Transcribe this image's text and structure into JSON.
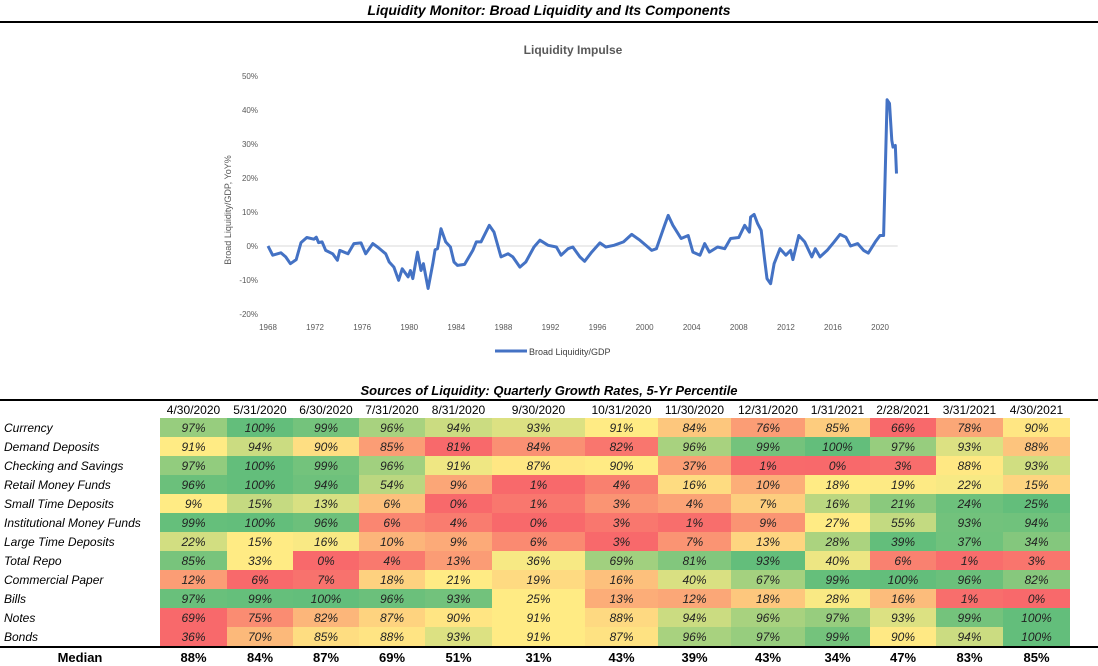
{
  "title": "Liquidity Monitor: Broad Liquidity and Its Components",
  "chart_data": {
    "type": "line",
    "title": "Liquidity Impulse",
    "xlabel": "",
    "ylabel": "Broad Liquidity/GDP, YoY%",
    "xlim": [
      1968,
      2022
    ],
    "ylim": [
      -20,
      50
    ],
    "x_ticks": [
      "1968",
      "1972",
      "1976",
      "1980",
      "1984",
      "1988",
      "1992",
      "1996",
      "2000",
      "2004",
      "2008",
      "2012",
      "2016",
      "2020"
    ],
    "y_ticks": [
      "50%",
      "40%",
      "30%",
      "20%",
      "10%",
      "0%",
      "-10%",
      "-20%"
    ],
    "grid": false,
    "legend": "bottom",
    "series": [
      {
        "name": "Broad Liquidity/GDP",
        "color": "#4472C4",
        "points": [
          [
            1968.0,
            0
          ],
          [
            1968.4,
            -2.7
          ],
          [
            1969.1,
            -2
          ],
          [
            1969.5,
            -3.2
          ],
          [
            1969.9,
            -5.2
          ],
          [
            1970.4,
            -4
          ],
          [
            1970.8,
            1
          ],
          [
            1971.3,
            2.5
          ],
          [
            1971.9,
            2
          ],
          [
            1972.1,
            2.6
          ],
          [
            1972.3,
            1
          ],
          [
            1972.6,
            1.2
          ],
          [
            1972.9,
            -1.3
          ],
          [
            1973.5,
            -2.3
          ],
          [
            1973.9,
            -4.2
          ],
          [
            1974.1,
            -1.3
          ],
          [
            1974.8,
            -2.3
          ],
          [
            1975.3,
            0.7
          ],
          [
            1975.9,
            0.9
          ],
          [
            1976.3,
            -2.3
          ],
          [
            1976.9,
            0.7
          ],
          [
            1977.3,
            -0.3
          ],
          [
            1978.0,
            -2.3
          ],
          [
            1978.3,
            -4.7
          ],
          [
            1978.7,
            -6.2
          ],
          [
            1979.1,
            -10.1
          ],
          [
            1979.4,
            -6.7
          ],
          [
            1979.9,
            -9.1
          ],
          [
            1980.1,
            -7.2
          ],
          [
            1980.3,
            -9.6
          ],
          [
            1980.7,
            -1.8
          ],
          [
            1981.0,
            -7.2
          ],
          [
            1981.2,
            -5.2
          ],
          [
            1981.6,
            -12.5
          ],
          [
            1982.0,
            -5.2
          ],
          [
            1982.2,
            -1.1
          ],
          [
            1982.4,
            -0.8
          ],
          [
            1982.7,
            5.1
          ],
          [
            1983.1,
            1.2
          ],
          [
            1983.5,
            -0.3
          ],
          [
            1983.8,
            -4.7
          ],
          [
            1984.1,
            -5.7
          ],
          [
            1984.7,
            -5.4
          ],
          [
            1985.4,
            -1.3
          ],
          [
            1985.7,
            1.2
          ],
          [
            1986.1,
            1.2
          ],
          [
            1986.8,
            6.1
          ],
          [
            1987.2,
            4.1
          ],
          [
            1987.8,
            -3.2
          ],
          [
            1988.4,
            -2.3
          ],
          [
            1988.8,
            -3.2
          ],
          [
            1989.4,
            -6.2
          ],
          [
            1989.9,
            -4.7
          ],
          [
            1990.6,
            -0.3
          ],
          [
            1991.1,
            1.7
          ],
          [
            1991.8,
            0.2
          ],
          [
            1992.5,
            -0.3
          ],
          [
            1992.9,
            -2.7
          ],
          [
            1993.5,
            -0.8
          ],
          [
            1993.9,
            -0.3
          ],
          [
            1994.5,
            -3.2
          ],
          [
            1994.9,
            -4.5
          ],
          [
            1995.5,
            -1.8
          ],
          [
            1996.2,
            0.9
          ],
          [
            1996.7,
            -0.3
          ],
          [
            1997.4,
            0.2
          ],
          [
            1998.2,
            1.2
          ],
          [
            1998.9,
            3.4
          ],
          [
            1999.6,
            1.7
          ],
          [
            2000.1,
            0.2
          ],
          [
            2000.6,
            -1.3
          ],
          [
            2001.0,
            -0.8
          ],
          [
            2001.7,
            6.1
          ],
          [
            2002.0,
            9
          ],
          [
            2002.4,
            6.1
          ],
          [
            2003.1,
            2.2
          ],
          [
            2003.7,
            3.1
          ],
          [
            2004.1,
            -1.8
          ],
          [
            2004.7,
            -2.7
          ],
          [
            2005.1,
            0.7
          ],
          [
            2005.5,
            -1.8
          ],
          [
            2006.2,
            -0.3
          ],
          [
            2006.8,
            -0.8
          ],
          [
            2007.3,
            2.2
          ],
          [
            2008.0,
            2.5
          ],
          [
            2008.5,
            6.1
          ],
          [
            2008.9,
            4.1
          ],
          [
            2009.0,
            8.5
          ],
          [
            2009.3,
            9.3
          ],
          [
            2009.6,
            6.6
          ],
          [
            2009.9,
            4.6
          ],
          [
            2010.2,
            -4.2
          ],
          [
            2010.4,
            -9.6
          ],
          [
            2010.7,
            -11.1
          ],
          [
            2011.0,
            -5.2
          ],
          [
            2011.5,
            -0.8
          ],
          [
            2012.0,
            -2.7
          ],
          [
            2012.4,
            -1.3
          ],
          [
            2012.6,
            -4
          ],
          [
            2013.1,
            3.1
          ],
          [
            2013.6,
            1.2
          ],
          [
            2014.2,
            -3.2
          ],
          [
            2014.5,
            -0.8
          ],
          [
            2014.9,
            -3.2
          ],
          [
            2015.5,
            -1.3
          ],
          [
            2016.1,
            1.2
          ],
          [
            2016.6,
            3.4
          ],
          [
            2017.1,
            2.6
          ],
          [
            2017.5,
            0
          ],
          [
            2018.1,
            0.7
          ],
          [
            2018.6,
            -1.3
          ],
          [
            2019.0,
            -2.1
          ],
          [
            2019.6,
            1.2
          ],
          [
            2020.0,
            3.1
          ],
          [
            2020.3,
            3.1
          ],
          [
            2020.6,
            43
          ],
          [
            2020.8,
            41.9
          ],
          [
            2021.0,
            31.1
          ],
          [
            2021.1,
            29.1
          ],
          [
            2021.3,
            29.6
          ],
          [
            2021.4,
            21.3
          ]
        ]
      }
    ]
  },
  "table": {
    "title": "Sources of Liquidity: Quarterly Growth Rates, 5-Yr Percentile",
    "columns": [
      "4/30/2020",
      "5/31/2020",
      "6/30/2020",
      "7/31/2020",
      "8/31/2020",
      "9/30/2020",
      "10/31/2020",
      "11/30/2020",
      "12/31/2020",
      "1/31/2021",
      "2/28/2021",
      "3/31/2021",
      "4/30/2021"
    ],
    "scale_colors": {
      "low": "#F8696B",
      "mid": "#FFEB84",
      "high": "#63BE7B"
    },
    "rows": [
      {
        "label": "Currency",
        "values": [
          "97%",
          "100%",
          "99%",
          "96%",
          "94%",
          "93%",
          "91%",
          "84%",
          "76%",
          "85%",
          "66%",
          "78%",
          "90%"
        ]
      },
      {
        "label": "Demand Deposits",
        "values": [
          "91%",
          "94%",
          "90%",
          "85%",
          "81%",
          "84%",
          "82%",
          "96%",
          "99%",
          "100%",
          "97%",
          "93%",
          "88%"
        ]
      },
      {
        "label": "Checking and Savings",
        "values": [
          "97%",
          "100%",
          "99%",
          "96%",
          "91%",
          "87%",
          "90%",
          "37%",
          "1%",
          "0%",
          "3%",
          "88%",
          "93%"
        ]
      },
      {
        "label": "Retail Money Funds",
        "values": [
          "96%",
          "100%",
          "94%",
          "54%",
          "9%",
          "1%",
          "4%",
          "16%",
          "10%",
          "18%",
          "19%",
          "22%",
          "15%"
        ]
      },
      {
        "label": "Small Time Deposits",
        "values": [
          "9%",
          "15%",
          "13%",
          "6%",
          "0%",
          "1%",
          "3%",
          "4%",
          "7%",
          "16%",
          "21%",
          "24%",
          "25%"
        ]
      },
      {
        "label": "Institutional Money Funds",
        "values": [
          "99%",
          "100%",
          "96%",
          "6%",
          "4%",
          "0%",
          "3%",
          "1%",
          "9%",
          "27%",
          "55%",
          "93%",
          "94%"
        ]
      },
      {
        "label": "Large Time Deposits",
        "values": [
          "22%",
          "15%",
          "16%",
          "10%",
          "9%",
          "6%",
          "3%",
          "7%",
          "13%",
          "28%",
          "39%",
          "37%",
          "34%"
        ]
      },
      {
        "label": "Total Repo",
        "values": [
          "85%",
          "33%",
          "0%",
          "4%",
          "13%",
          "36%",
          "69%",
          "81%",
          "93%",
          "40%",
          "6%",
          "1%",
          "3%"
        ]
      },
      {
        "label": "Commercial Paper",
        "values": [
          "12%",
          "6%",
          "7%",
          "18%",
          "21%",
          "19%",
          "16%",
          "40%",
          "67%",
          "99%",
          "100%",
          "96%",
          "82%"
        ]
      },
      {
        "label": "Bills",
        "values": [
          "97%",
          "99%",
          "100%",
          "96%",
          "93%",
          "25%",
          "13%",
          "12%",
          "18%",
          "28%",
          "16%",
          "1%",
          "0%"
        ]
      },
      {
        "label": "Notes",
        "values": [
          "69%",
          "75%",
          "82%",
          "87%",
          "90%",
          "91%",
          "88%",
          "94%",
          "96%",
          "97%",
          "93%",
          "99%",
          "100%"
        ]
      },
      {
        "label": "Bonds",
        "values": [
          "36%",
          "70%",
          "85%",
          "88%",
          "93%",
          "91%",
          "87%",
          "96%",
          "97%",
          "99%",
          "90%",
          "94%",
          "100%"
        ]
      }
    ],
    "median": {
      "label": "Median",
      "values": [
        "88%",
        "84%",
        "87%",
        "69%",
        "51%",
        "31%",
        "43%",
        "39%",
        "43%",
        "34%",
        "47%",
        "83%",
        "85%"
      ]
    }
  }
}
